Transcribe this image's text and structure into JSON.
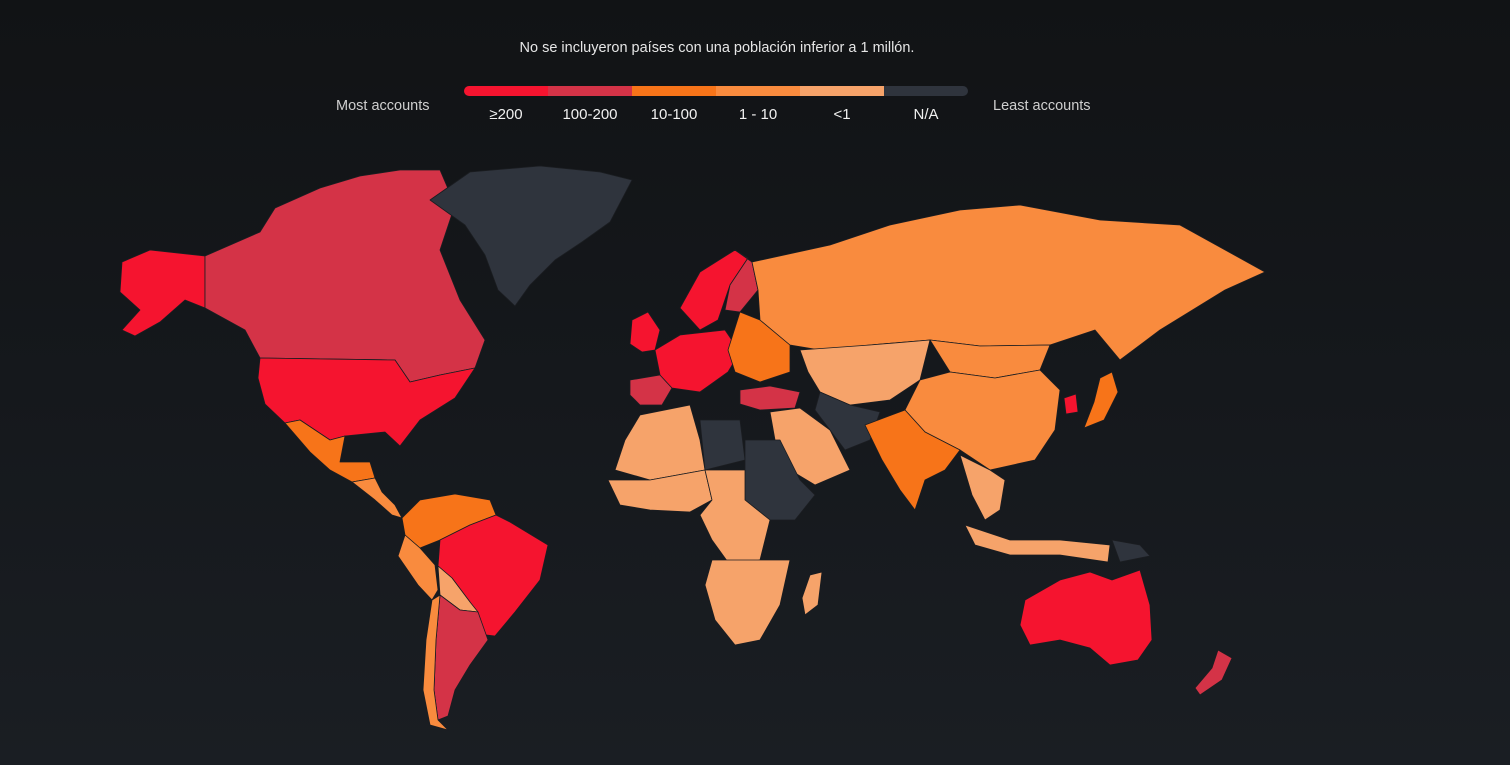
{
  "note": "No se incluyeron países con una población inferior a 1 millón.",
  "legend": {
    "most_label": "Most accounts",
    "least_label": "Least accounts",
    "categories": [
      {
        "label": "≥200",
        "color": "#f5142f"
      },
      {
        "label": "100-200",
        "color": "#d43347"
      },
      {
        "label": "10-100",
        "color": "#f77419"
      },
      {
        "label": "1 - 10",
        "color": "#f98b3e"
      },
      {
        "label": "<1",
        "color": "#f6a36a"
      },
      {
        "label": "N/A",
        "color": "#2f343d"
      }
    ]
  },
  "regions": [
    {
      "name": "alaska",
      "category": "≥200"
    },
    {
      "name": "canada",
      "category": "100-200"
    },
    {
      "name": "greenland",
      "category": "N/A"
    },
    {
      "name": "usa",
      "category": "≥200"
    },
    {
      "name": "mexico",
      "category": "10-100"
    },
    {
      "name": "central-america",
      "category": "1 - 10"
    },
    {
      "name": "colombia-venezuela",
      "category": "10-100"
    },
    {
      "name": "peru",
      "category": "1 - 10"
    },
    {
      "name": "brazil",
      "category": "≥200"
    },
    {
      "name": "bolivia-paraguay",
      "category": "<1"
    },
    {
      "name": "argentina",
      "category": "100-200"
    },
    {
      "name": "chile",
      "category": "1 - 10"
    },
    {
      "name": "uk-ireland",
      "category": "≥200"
    },
    {
      "name": "iberia",
      "category": "100-200"
    },
    {
      "name": "scandinavia",
      "category": "≥200"
    },
    {
      "name": "finland",
      "category": "100-200"
    },
    {
      "name": "central-europe",
      "category": "≥200"
    },
    {
      "name": "eastern-europe",
      "category": "10-100"
    },
    {
      "name": "turkey",
      "category": "100-200"
    },
    {
      "name": "russia",
      "category": "1 - 10"
    },
    {
      "name": "kazakhstan-central-asia",
      "category": "<1"
    },
    {
      "name": "china",
      "category": "1 - 10"
    },
    {
      "name": "mongolia",
      "category": "1 - 10"
    },
    {
      "name": "north-africa",
      "category": "<1"
    },
    {
      "name": "libya",
      "category": "N/A"
    },
    {
      "name": "west-africa",
      "category": "<1"
    },
    {
      "name": "central-africa",
      "category": "<1"
    },
    {
      "name": "east-africa",
      "category": "N/A"
    },
    {
      "name": "southern-africa",
      "category": "<1"
    },
    {
      "name": "madagascar",
      "category": "<1"
    },
    {
      "name": "middle-east",
      "category": "<1"
    },
    {
      "name": "iran-afghanistan",
      "category": "N/A"
    },
    {
      "name": "india",
      "category": "10-100"
    },
    {
      "name": "southeast-asia",
      "category": "<1"
    },
    {
      "name": "indonesia",
      "category": "<1"
    },
    {
      "name": "japan",
      "category": "10-100"
    },
    {
      "name": "korea",
      "category": "≥200"
    },
    {
      "name": "australia",
      "category": "≥200"
    },
    {
      "name": "new-zealand",
      "category": "100-200"
    },
    {
      "name": "png",
      "category": "N/A"
    }
  ]
}
